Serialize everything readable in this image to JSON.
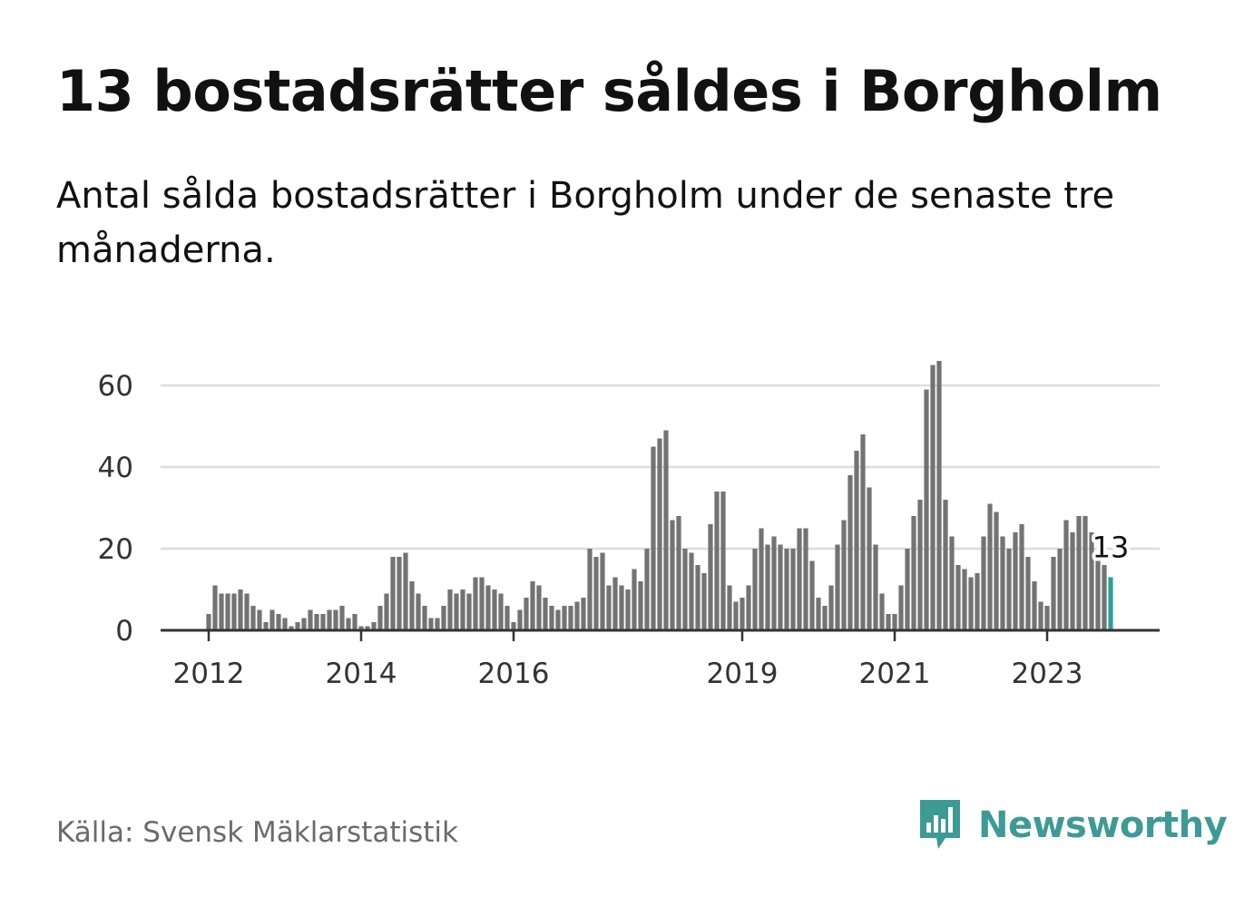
{
  "header": {
    "title": "13 bostadsrätter såldes i Borgholm",
    "subtitle": "Antal sålda bostadsrätter i Borgholm under de senaste tre månaderna."
  },
  "footer": {
    "source": "Källa: Svensk Mäklarstatistik",
    "brand": "Newsworthy"
  },
  "colors": {
    "bar": "#737373",
    "highlight": "#2aa198",
    "grid": "#dddddd",
    "axis": "#333333",
    "brand": "#3d9a94"
  },
  "chart_data": {
    "type": "bar",
    "title": "13 bostadsrätter såldes i Borgholm",
    "xlabel": "",
    "ylabel": "",
    "ylim": [
      0,
      70
    ],
    "yticks": [
      0,
      20,
      40,
      60
    ],
    "grid": true,
    "start": "2011-12",
    "frequency": "monthly",
    "xticks": [
      {
        "label": "2012",
        "index": 0
      },
      {
        "label": "2014",
        "index": 24
      },
      {
        "label": "2016",
        "index": 48
      },
      {
        "label": "2019",
        "index": 84
      },
      {
        "label": "2021",
        "index": 108
      },
      {
        "label": "2023",
        "index": 132
      }
    ],
    "values": [
      4,
      11,
      9,
      9,
      9,
      10,
      9,
      6,
      5,
      2,
      5,
      4,
      3,
      1,
      2,
      3,
      5,
      4,
      4,
      5,
      5,
      6,
      3,
      4,
      1,
      1,
      2,
      6,
      9,
      18,
      18,
      19,
      12,
      9,
      6,
      3,
      3,
      6,
      10,
      9,
      10,
      9,
      13,
      13,
      11,
      10,
      9,
      6,
      2,
      5,
      8,
      12,
      11,
      8,
      6,
      5,
      6,
      6,
      7,
      8,
      20,
      18,
      19,
      11,
      13,
      11,
      10,
      15,
      12,
      20,
      45,
      47,
      49,
      27,
      28,
      20,
      19,
      16,
      14,
      26,
      34,
      34,
      11,
      7,
      8,
      11,
      20,
      25,
      21,
      23,
      21,
      20,
      20,
      25,
      25,
      17,
      8,
      6,
      11,
      21,
      27,
      38,
      44,
      48,
      35,
      21,
      9,
      4,
      4,
      11,
      20,
      28,
      32,
      59,
      65,
      66,
      32,
      23,
      16,
      15,
      13,
      14,
      23,
      31,
      29,
      23,
      20,
      24,
      26,
      18,
      12,
      7,
      6,
      18,
      20,
      27,
      24,
      28,
      28,
      24,
      17,
      16,
      13
    ],
    "highlight": {
      "index": 142,
      "value": 13,
      "label": "13"
    }
  }
}
